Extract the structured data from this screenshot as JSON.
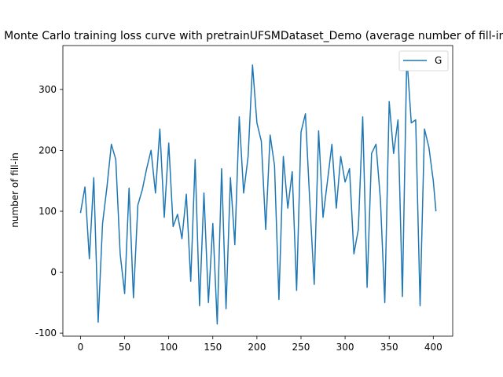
{
  "chart_data": {
    "type": "line",
    "title": "Monte Carlo training loss curve with pretrainUFSMDataset_Demo (average number of fill-in)",
    "xlabel": "",
    "ylabel": "number of fill-in",
    "xlim": [
      -20,
      422
    ],
    "ylim": [
      -105,
      372
    ],
    "xticks": [
      0,
      50,
      100,
      150,
      200,
      250,
      300,
      350,
      400
    ],
    "yticks": [
      -100,
      0,
      100,
      200,
      300
    ],
    "legend": {
      "position": "top-right",
      "entries": [
        "G"
      ]
    },
    "grid": false,
    "color": "#1f77b4",
    "series": [
      {
        "name": "G",
        "x": [
          0,
          5,
          10,
          15,
          20,
          25,
          30,
          35,
          40,
          45,
          50,
          55,
          60,
          65,
          70,
          75,
          80,
          85,
          90,
          95,
          100,
          105,
          110,
          115,
          120,
          125,
          130,
          135,
          140,
          145,
          150,
          155,
          160,
          165,
          170,
          175,
          180,
          185,
          190,
          195,
          200,
          205,
          210,
          215,
          220,
          225,
          230,
          235,
          240,
          245,
          250,
          255,
          260,
          265,
          270,
          275,
          280,
          285,
          290,
          295,
          300,
          305,
          310,
          315,
          320,
          325,
          330,
          335,
          340,
          345,
          350,
          355,
          360,
          365,
          370,
          375,
          380,
          385,
          390,
          395,
          400,
          403
        ],
        "values": [
          97,
          140,
          22,
          155,
          -82,
          80,
          140,
          210,
          185,
          30,
          -35,
          138,
          -42,
          110,
          135,
          170,
          200,
          130,
          235,
          90,
          212,
          75,
          95,
          55,
          128,
          -15,
          185,
          -55,
          130,
          -50,
          80,
          -85,
          170,
          -60,
          155,
          45,
          255,
          130,
          190,
          340,
          245,
          215,
          70,
          225,
          175,
          -45,
          190,
          105,
          165,
          -30,
          230,
          260,
          115,
          -20,
          232,
          90,
          150,
          210,
          105,
          190,
          148,
          170,
          30,
          70,
          255,
          -25,
          195,
          210,
          120,
          -50,
          280,
          195,
          250,
          -40,
          355,
          245,
          250,
          -55,
          235,
          205,
          150,
          100
        ]
      }
    ]
  }
}
